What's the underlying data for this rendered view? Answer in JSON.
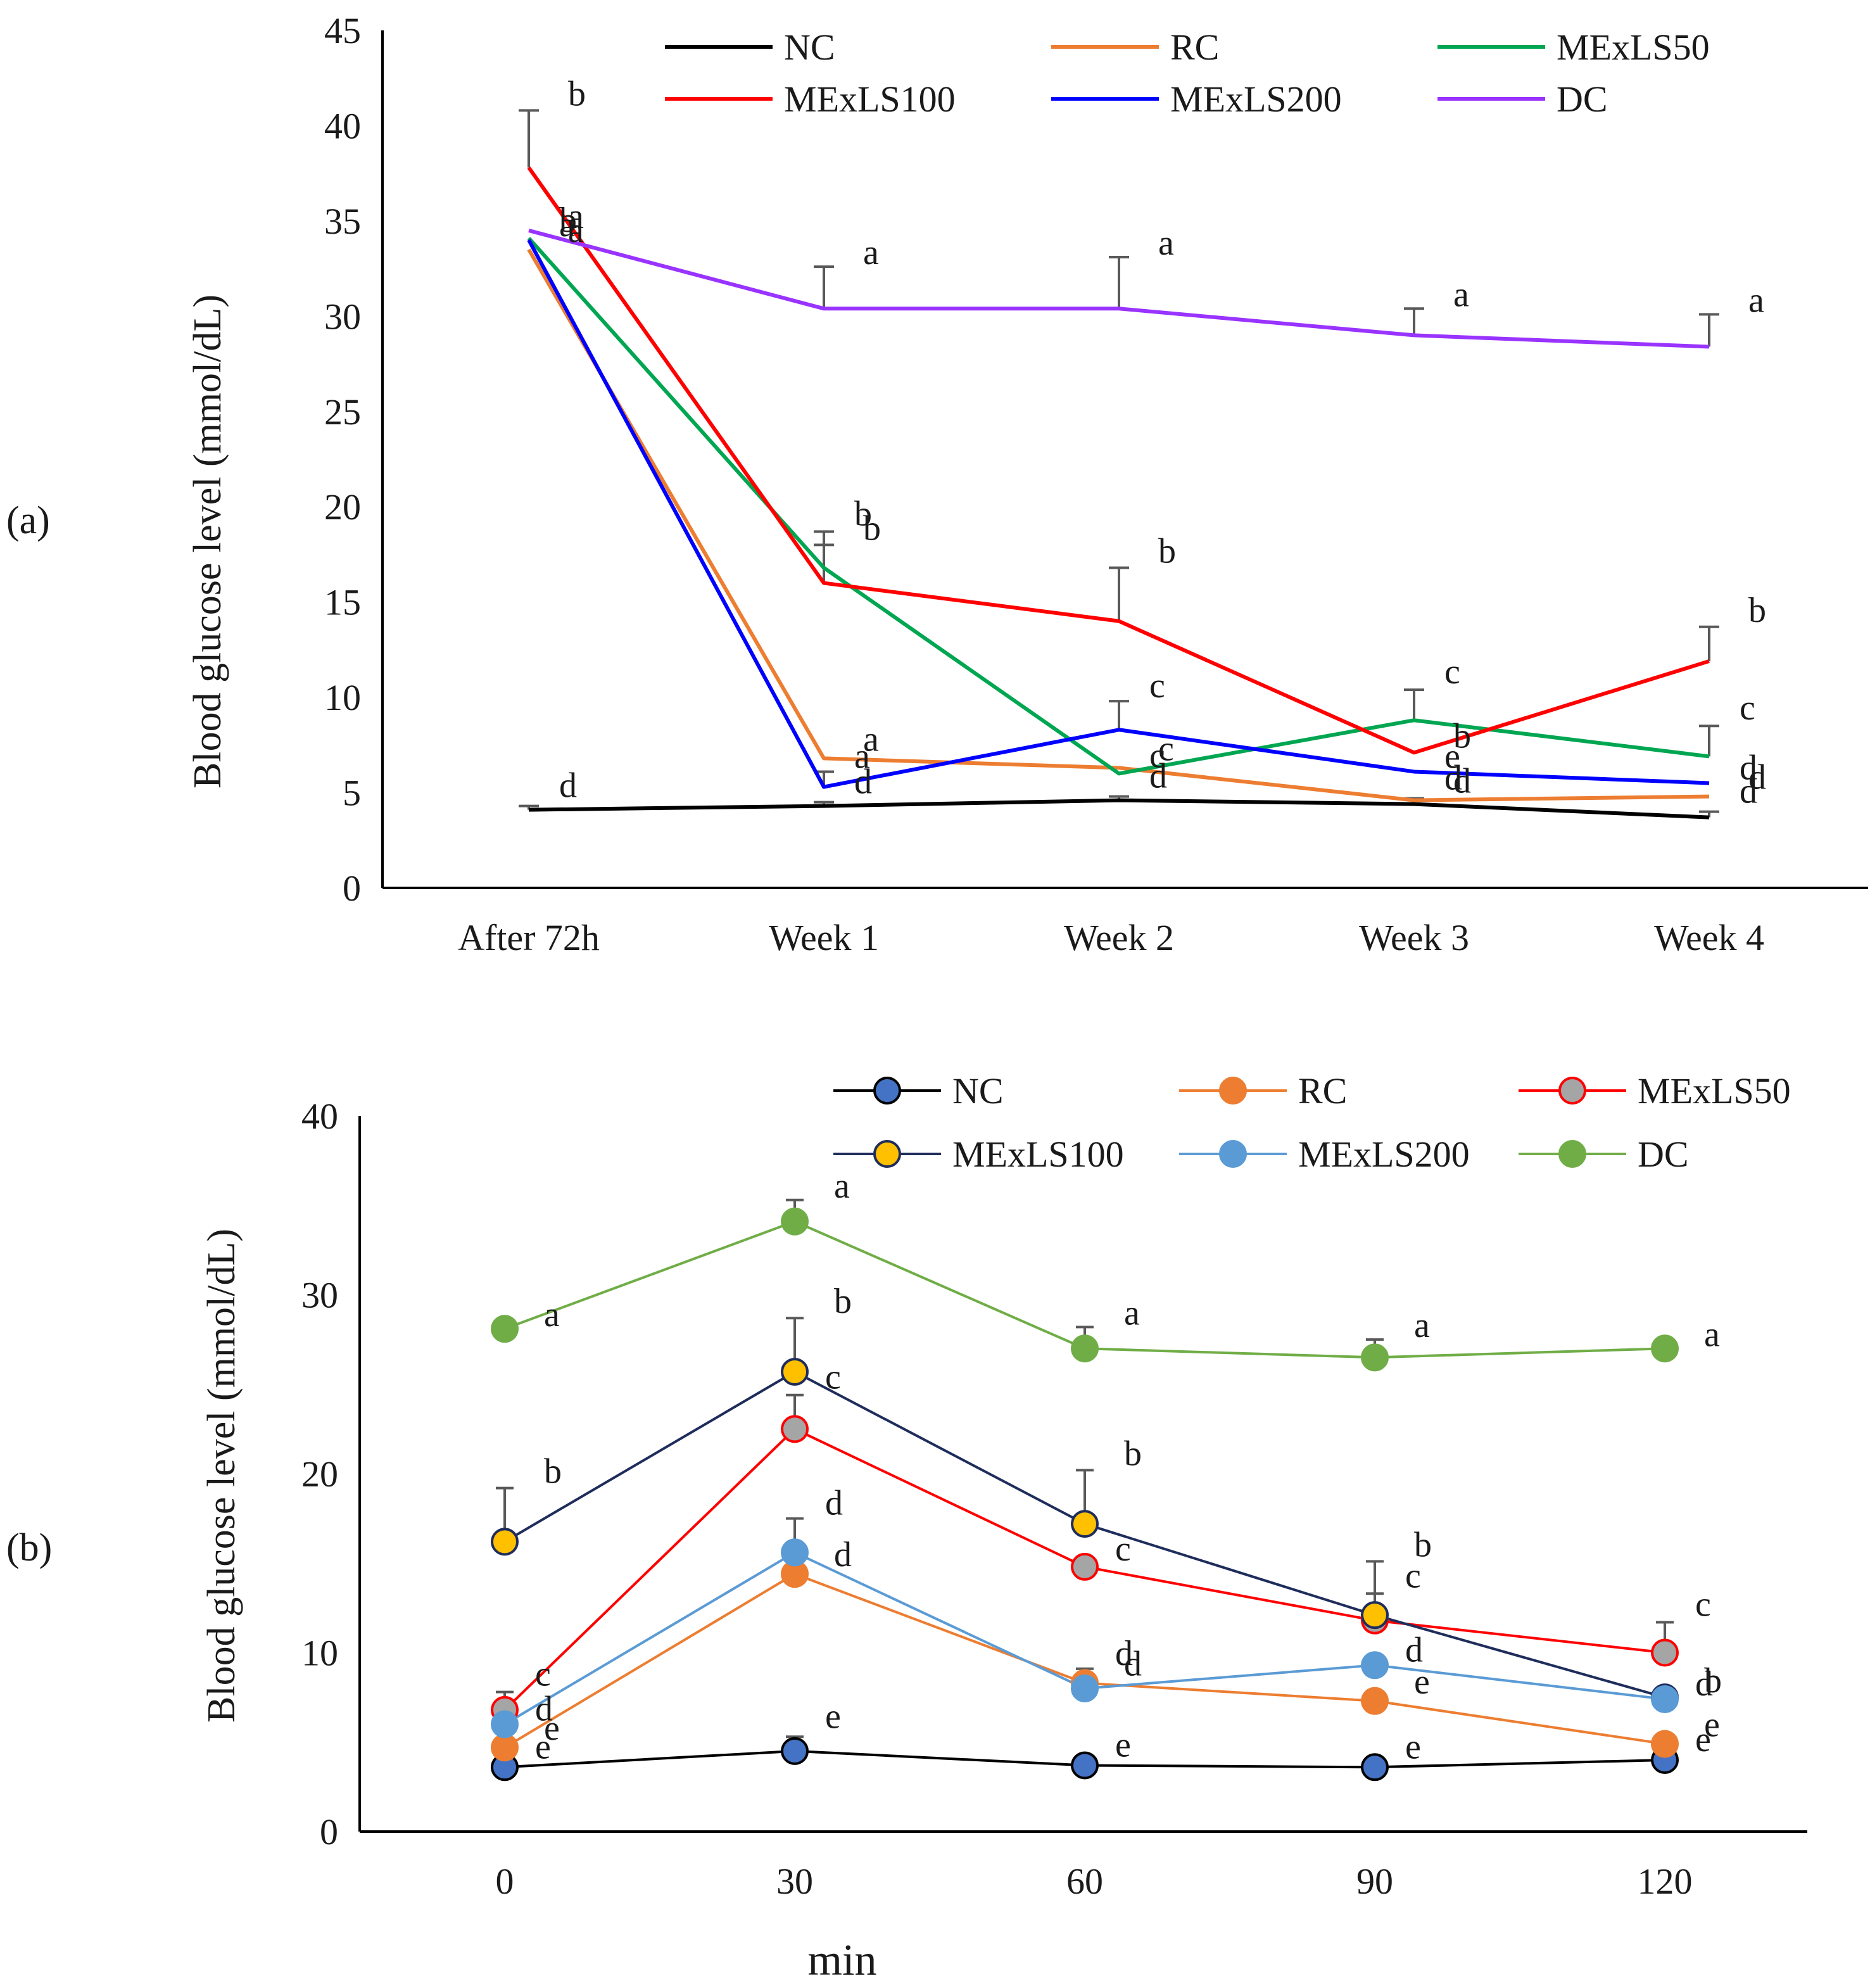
{
  "chart_data": [
    {
      "type": "line",
      "panel_label": "(a)",
      "title": "",
      "xlabel": "",
      "ylabel": "Blood glucose level (mmol/dL)",
      "categories": [
        "After 72h",
        "Week 1",
        "Week 2",
        "Week 3",
        "Week 4"
      ],
      "ylim": [
        0,
        45
      ],
      "yticks": [
        0,
        5,
        10,
        15,
        20,
        25,
        30,
        35,
        40,
        45
      ],
      "grid": false,
      "legend": "top",
      "series": [
        {
          "name": "NC",
          "color": "#000000",
          "values": [
            4.1,
            4.3,
            4.6,
            4.4,
            3.7
          ],
          "errors": [
            0.2,
            0.2,
            0.2,
            0.3,
            0.3
          ],
          "letters": [
            "d",
            "d",
            "d",
            "d",
            "d"
          ]
        },
        {
          "name": "RC",
          "color": "#ED7D31",
          "values": [
            33.5,
            6.8,
            6.3,
            4.6,
            4.8
          ],
          "errors": [
            0,
            0,
            0,
            0,
            0
          ],
          "letters": [
            "a",
            "a",
            "c",
            "d",
            "d"
          ]
        },
        {
          "name": "MExLS50",
          "color": "#00A651",
          "values": [
            34.1,
            16.8,
            6.0,
            8.8,
            6.9
          ],
          "errors": [
            0,
            1.9,
            0,
            1.6,
            1.6
          ],
          "letters": [
            "b",
            "b",
            "c",
            "c",
            "c"
          ]
        },
        {
          "name": "MExLS100",
          "color": "#FF0000",
          "values": [
            37.8,
            16.0,
            14.0,
            7.1,
            11.9
          ],
          "errors": [
            3.0,
            2.0,
            2.8,
            0,
            1.8
          ],
          "letters": [
            "b",
            "b",
            "b",
            "b",
            "b"
          ]
        },
        {
          "name": "MExLS200",
          "color": "#0000FF",
          "values": [
            34.0,
            5.3,
            8.3,
            6.1,
            5.5
          ],
          "errors": [
            0,
            0.8,
            1.5,
            0,
            0
          ],
          "letters": [
            "a",
            "a",
            "c",
            "e",
            "d"
          ]
        },
        {
          "name": "DC",
          "color": "#9933FF",
          "values": [
            34.5,
            30.4,
            30.4,
            29.0,
            28.4
          ],
          "errors": [
            0,
            2.2,
            2.7,
            1.4,
            1.7
          ],
          "letters": [
            "a",
            "a",
            "a",
            "a",
            "a"
          ]
        }
      ]
    },
    {
      "type": "line",
      "panel_label": "(b)",
      "title": "",
      "xlabel": "min",
      "ylabel": "Blood glucose level (mmol/dL)",
      "x": [
        0,
        30,
        60,
        90,
        120
      ],
      "categories": [
        "0",
        "30",
        "60",
        "90",
        "120"
      ],
      "ylim": [
        0,
        40
      ],
      "yticks": [
        0,
        10,
        20,
        30,
        40
      ],
      "grid": false,
      "legend": "top",
      "series": [
        {
          "name": "NC",
          "color": "#000000",
          "marker": "#4472C4",
          "values": [
            3.6,
            4.5,
            3.7,
            3.6,
            4.0
          ],
          "errors": [
            0,
            0.8,
            0,
            0,
            0
          ],
          "letters": [
            "e",
            "e",
            "e",
            "e",
            "e"
          ]
        },
        {
          "name": "RC",
          "color": "#ED7D31",
          "marker": "#ED7D31",
          "values": [
            4.7,
            14.4,
            8.3,
            7.3,
            4.9
          ],
          "errors": [
            0,
            0,
            0,
            0,
            0
          ],
          "letters": [
            "e",
            "d",
            "d",
            "e",
            "e"
          ]
        },
        {
          "name": "MExLS50",
          "color": "#FF0000",
          "marker": "#A5A5A5",
          "values": [
            6.8,
            22.5,
            14.8,
            11.8,
            10.0
          ],
          "errors": [
            1.0,
            1.9,
            0,
            1.5,
            1.7
          ],
          "letters": [
            "c",
            "c",
            "c",
            "c",
            "c"
          ]
        },
        {
          "name": "MExLS100",
          "color": "#1F2D5C",
          "marker": "#FFC000",
          "values": [
            16.2,
            25.7,
            17.2,
            12.1,
            7.5
          ],
          "errors": [
            3.0,
            3.0,
            3.0,
            3.0,
            0
          ],
          "letters": [
            "b",
            "b",
            "b",
            "b",
            "b"
          ]
        },
        {
          "name": "MExLS200",
          "color": "#5B9BD5",
          "marker": "#5B9BD5",
          "values": [
            6.0,
            15.6,
            8.0,
            9.3,
            7.4
          ],
          "errors": [
            0,
            1.9,
            1.1,
            0,
            0
          ],
          "letters": [
            "d",
            "d",
            "d",
            "d",
            "d"
          ]
        },
        {
          "name": "DC",
          "color": "#70AD47",
          "marker": "#70AD47",
          "values": [
            28.1,
            34.1,
            27.0,
            26.5,
            27.0
          ],
          "errors": [
            0,
            1.2,
            1.2,
            1.0,
            0
          ],
          "letters": [
            "a",
            "a",
            "a",
            "a",
            "a"
          ]
        }
      ]
    }
  ]
}
